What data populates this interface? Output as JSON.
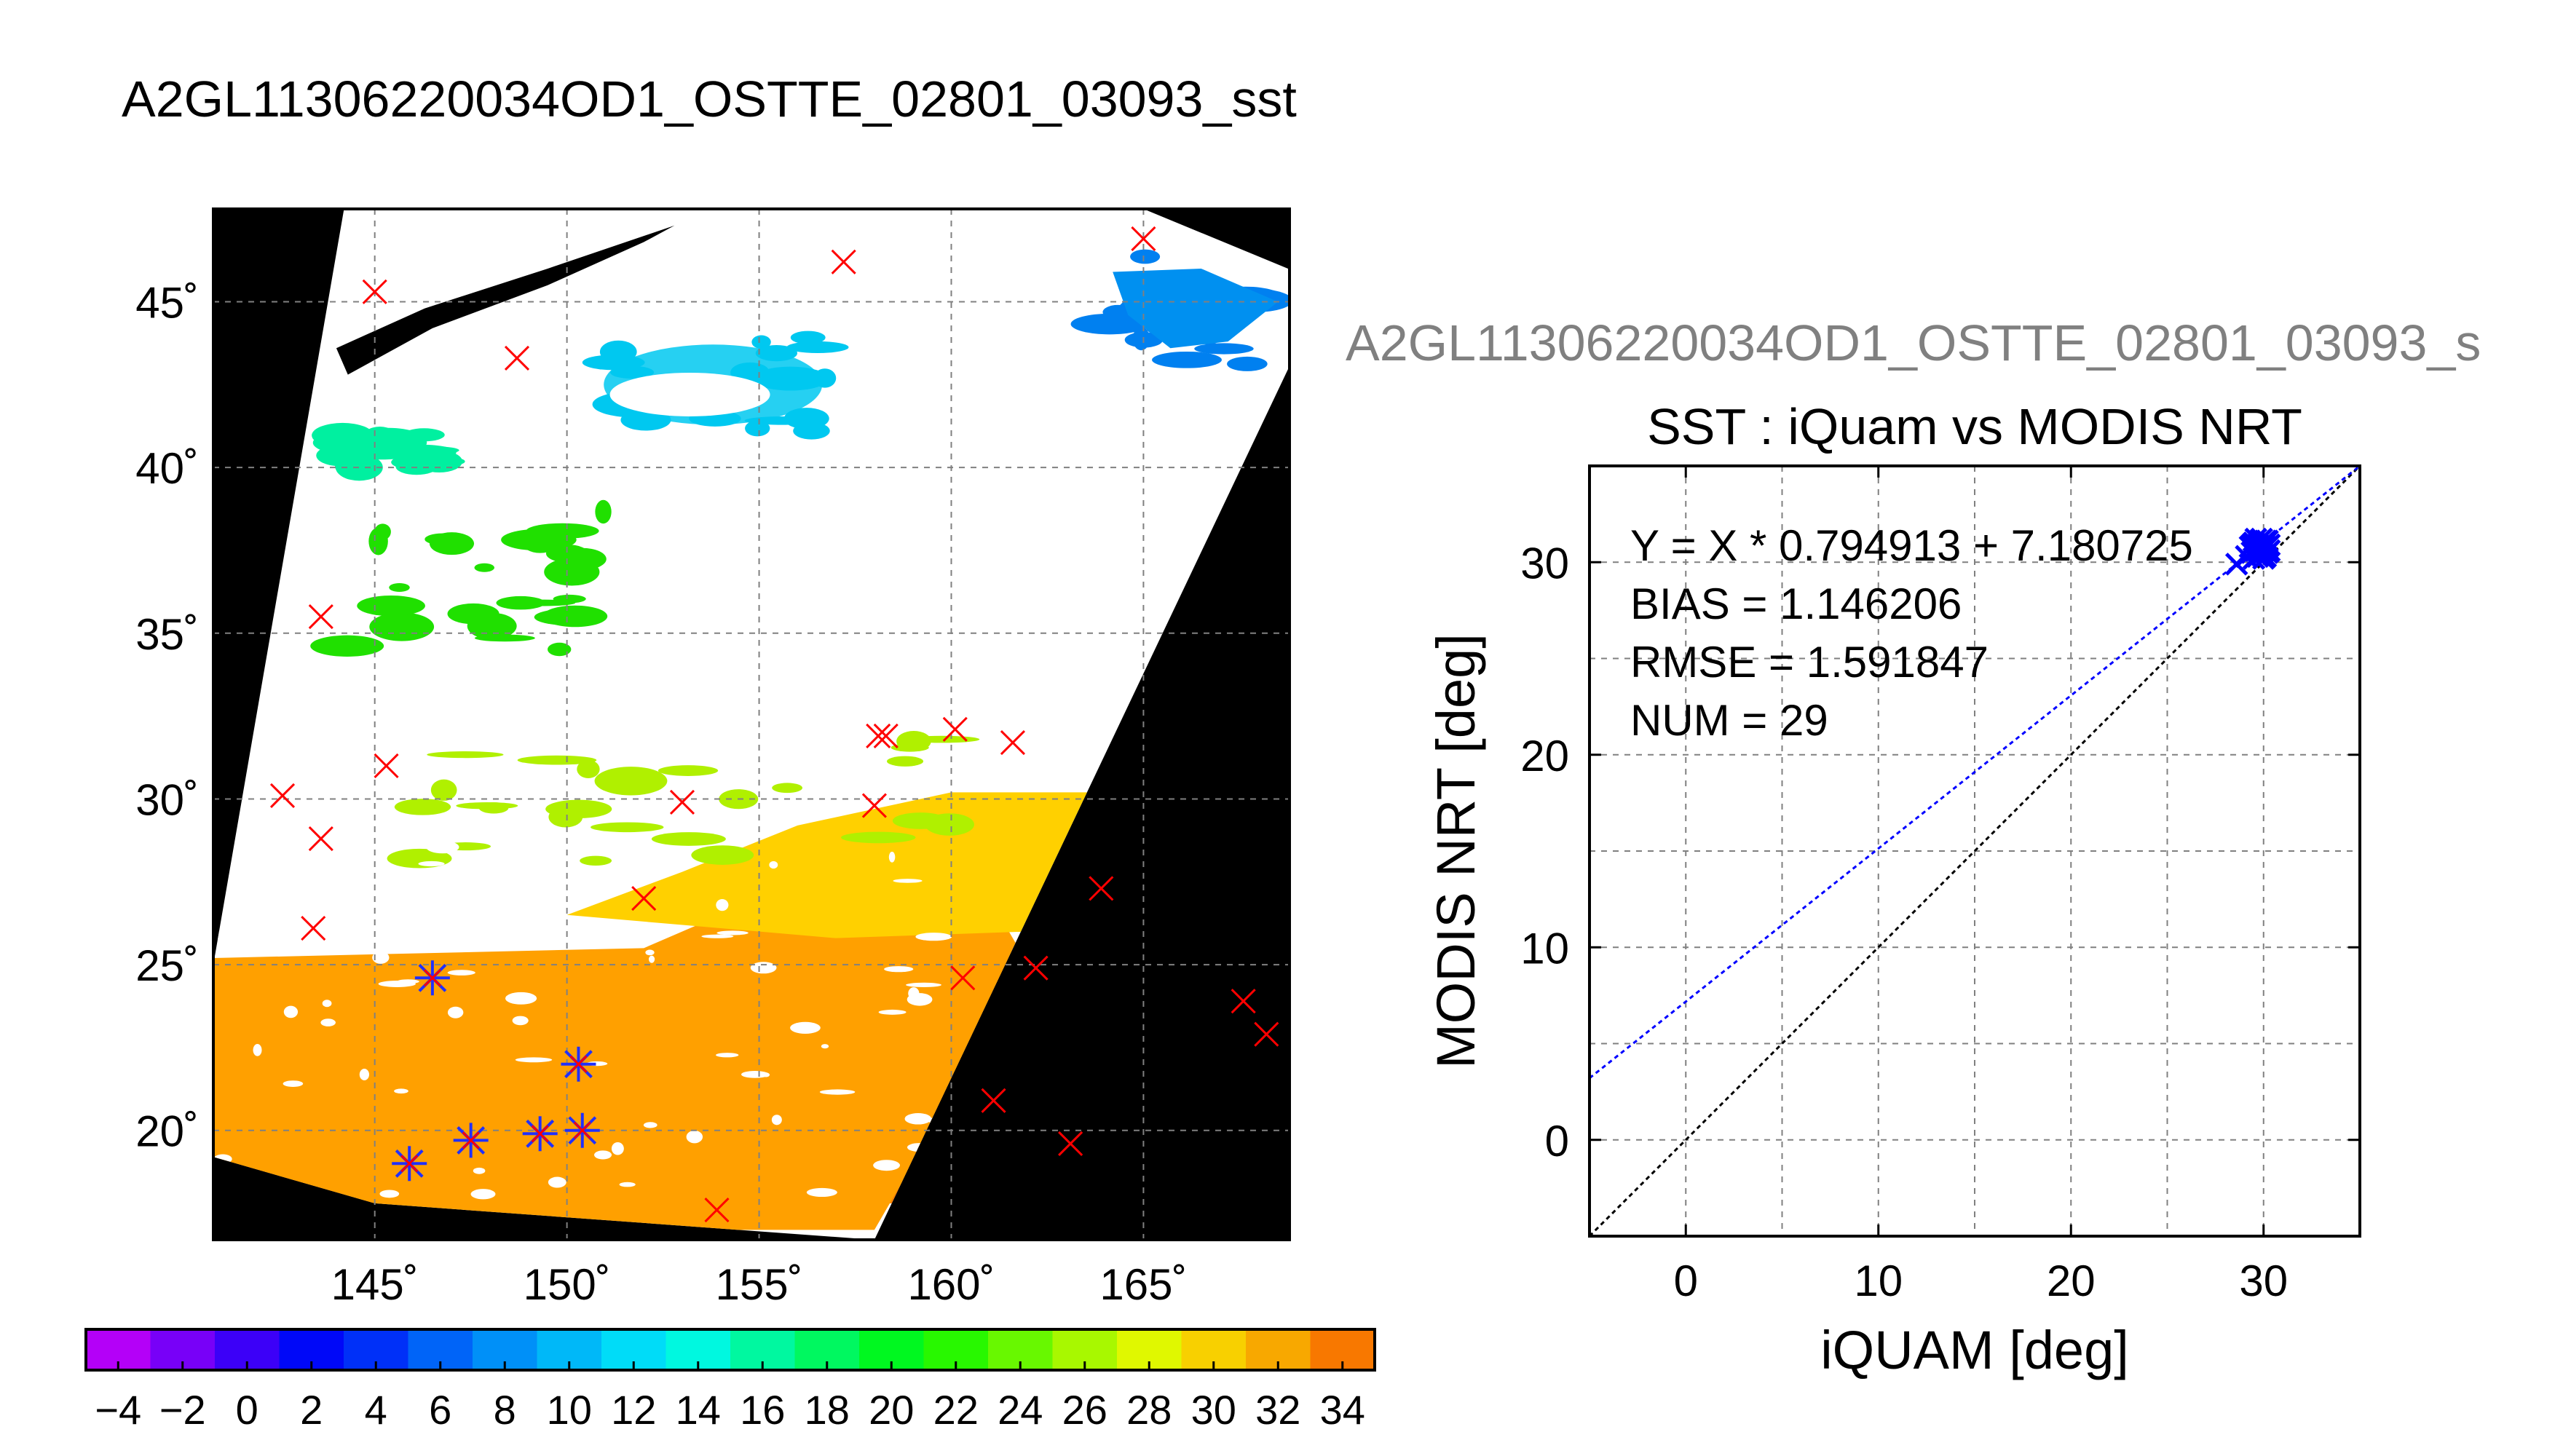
{
  "page": {
    "title": "A2GL11306220034OD1_OSTTE_02801_03093_sst",
    "subtitle_truncated": "A2GL11306220034OD1_OSTTE_02801_03093_s"
  },
  "chart_data": [
    {
      "type": "map",
      "title": "A2GL11306220034OD1_OSTTE_02801_03093_sst",
      "lon_range": [
        140.8,
        168.8
      ],
      "lat_range": [
        16.7,
        47.8
      ],
      "lon_ticks": [
        145,
        150,
        155,
        160,
        165
      ],
      "lon_tick_labels": [
        "145˚",
        "150˚",
        "155˚",
        "160˚",
        "165˚"
      ],
      "lat_ticks": [
        20,
        25,
        30,
        35,
        40,
        45
      ],
      "lat_tick_labels": [
        "20˚",
        "25˚",
        "30˚",
        "35˚",
        "40˚",
        "45˚"
      ],
      "grid": true,
      "background_color": "#000000",
      "cloud_color": "#ffffff",
      "swath_corners_lonlat": [
        [
          144.2,
          47.8
        ],
        [
          165.0,
          47.8
        ],
        [
          169.8,
          45.5
        ],
        [
          158.0,
          16.7
        ],
        [
          145.0,
          17.8
        ],
        [
          140.8,
          19.2
        ],
        [
          140.8,
          25.0
        ]
      ],
      "sst_regions": [
        {
          "approx_value": 31,
          "color": "#ff8000",
          "lat_range": [
            17.8,
            25.2
          ]
        },
        {
          "approx_value": 29,
          "color": "#ffa000",
          "lat_range": [
            21.0,
            29.0
          ]
        },
        {
          "approx_value": 28,
          "color": "#ffd000",
          "lat_range": [
            25.0,
            30.2
          ]
        },
        {
          "approx_value": 24,
          "color": "#b0f000",
          "lat_range": [
            28.0,
            32.0
          ]
        },
        {
          "approx_value": 20,
          "color": "#20e000",
          "lat_range": [
            34.5,
            39.0
          ]
        },
        {
          "approx_value": 14,
          "color": "#00f0a0",
          "lat_range": [
            40.0,
            41.0
          ]
        },
        {
          "approx_value": 10,
          "color": "#00c8f0",
          "lat_range": [
            41.0,
            44.0
          ]
        },
        {
          "approx_value": 6,
          "color": "#0080f0",
          "lat_range": [
            43.0,
            46.5
          ]
        }
      ],
      "iquam_red_points": [
        [
          145.0,
          45.3
        ],
        [
          148.7,
          43.3
        ],
        [
          157.2,
          46.2
        ],
        [
          165.0,
          46.9
        ],
        [
          143.6,
          35.5
        ],
        [
          145.3,
          31.0
        ],
        [
          142.6,
          30.1
        ],
        [
          143.6,
          28.8
        ],
        [
          143.4,
          26.1
        ],
        [
          153.0,
          29.9
        ],
        [
          158.1,
          31.9
        ],
        [
          158.3,
          31.9
        ],
        [
          160.1,
          32.1
        ],
        [
          161.6,
          31.7
        ],
        [
          158.0,
          29.8
        ],
        [
          152.0,
          27.0
        ],
        [
          163.9,
          27.3
        ],
        [
          160.3,
          24.6
        ],
        [
          162.2,
          24.9
        ],
        [
          167.6,
          23.9
        ],
        [
          168.2,
          22.9
        ],
        [
          161.1,
          20.9
        ],
        [
          163.1,
          19.6
        ],
        [
          153.9,
          17.6
        ]
      ],
      "matchup_points": [
        [
          146.5,
          24.6
        ],
        [
          150.3,
          22.0
        ],
        [
          149.3,
          19.9
        ],
        [
          150.4,
          20.0
        ],
        [
          147.5,
          19.7
        ],
        [
          145.9,
          19.0
        ]
      ],
      "colorbar": {
        "min": -5,
        "max": 35,
        "step": 2,
        "tick_labels": [
          "−4",
          "−2",
          "0",
          "2",
          "4",
          "6",
          "8",
          "10",
          "12",
          "14",
          "16",
          "18",
          "20",
          "22",
          "24",
          "26",
          "28",
          "30",
          "32",
          "34"
        ],
        "colors": [
          "#e400f8",
          "#b400f8",
          "#7800f8",
          "#3c00f8",
          "#0008f8",
          "#0030f8",
          "#0064f8",
          "#0090f8",
          "#00b8f8",
          "#00dcf8",
          "#00f8e0",
          "#00f8a0",
          "#00f860",
          "#00f820",
          "#28f800",
          "#68f800",
          "#a8f800",
          "#e0f800",
          "#f8d000",
          "#f8a800",
          "#f87800",
          "#f84800"
        ]
      }
    },
    {
      "type": "scatter",
      "title": "SST : iQuam vs MODIS NRT",
      "xlabel": "iQUAM [deg]",
      "ylabel": "MODIS NRT [deg]",
      "xlim": [
        -5,
        35
      ],
      "ylim": [
        -5,
        35
      ],
      "x_ticks": [
        0,
        10,
        20,
        30
      ],
      "y_ticks": [
        0,
        10,
        20,
        30
      ],
      "grid": true,
      "annotations": [
        "Y = X * 0.794913 + 7.180725",
        "BIAS = 1.146206",
        "RMSE = 1.591847",
        "NUM = 29"
      ],
      "regression": {
        "slope": 0.794913,
        "intercept": 7.180725,
        "color": "#0000ff"
      },
      "identity_line": {
        "color": "#000000"
      },
      "points_color": "#0000ff",
      "points": [
        [
          28.6,
          29.9
        ],
        [
          29.1,
          30.3
        ],
        [
          29.3,
          30.8
        ],
        [
          29.4,
          30.5
        ],
        [
          29.5,
          31.0
        ],
        [
          29.6,
          30.6
        ],
        [
          29.7,
          30.9
        ],
        [
          29.7,
          30.3
        ],
        [
          29.8,
          31.1
        ],
        [
          29.8,
          30.7
        ],
        [
          29.9,
          30.4
        ],
        [
          29.9,
          30.9
        ],
        [
          30.0,
          31.0
        ],
        [
          30.0,
          30.6
        ],
        [
          30.1,
          30.8
        ],
        [
          30.1,
          30.3
        ],
        [
          30.2,
          31.1
        ],
        [
          30.2,
          30.5
        ],
        [
          30.3,
          30.9
        ],
        [
          30.3,
          30.6
        ],
        [
          29.5,
          30.2
        ],
        [
          29.6,
          31.2
        ],
        [
          29.9,
          31.2
        ],
        [
          30.0,
          30.2
        ],
        [
          30.2,
          30.8
        ],
        [
          29.4,
          30.9
        ],
        [
          29.8,
          30.5
        ],
        [
          30.1,
          31.1
        ],
        [
          29.7,
          30.7
        ]
      ]
    }
  ]
}
